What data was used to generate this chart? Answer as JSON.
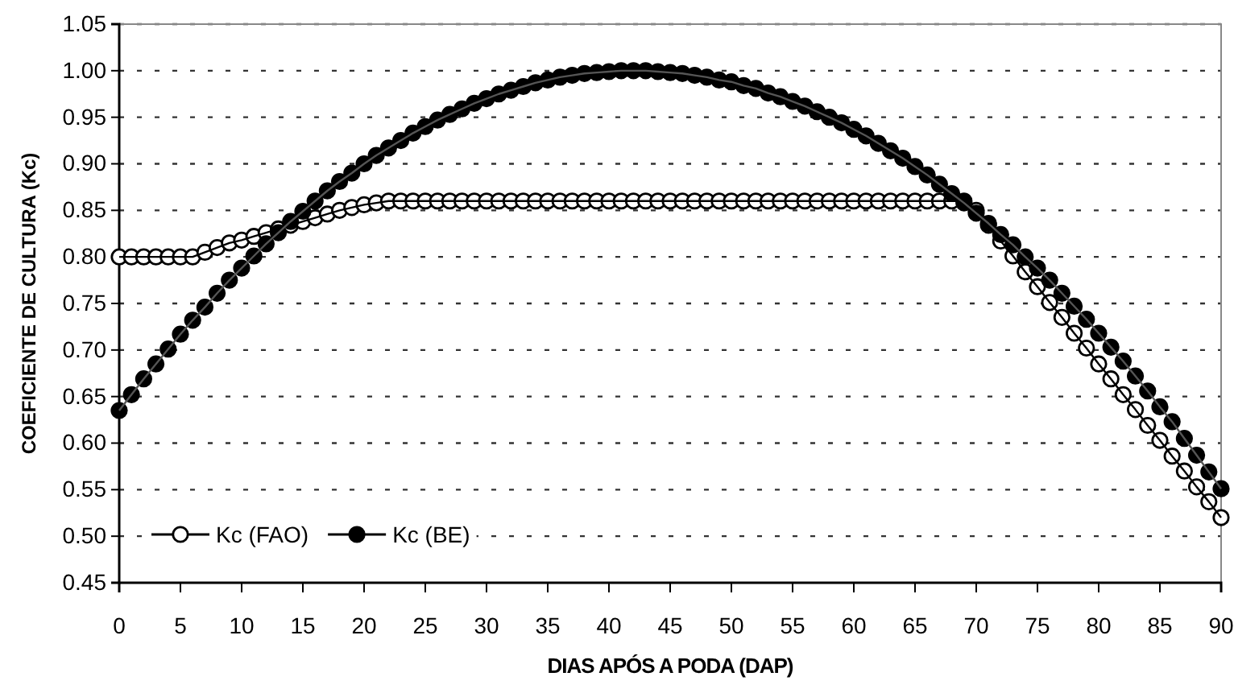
{
  "chart_data": {
    "type": "line",
    "xlabel": "DIAS APÓS A PODA (DAP)",
    "ylabel": "COEFICIENTE DE CULTURA (Kc)",
    "x": [
      0,
      1,
      2,
      3,
      4,
      5,
      6,
      7,
      8,
      9,
      10,
      11,
      12,
      13,
      14,
      15,
      16,
      17,
      18,
      19,
      20,
      21,
      22,
      23,
      24,
      25,
      26,
      27,
      28,
      29,
      30,
      31,
      32,
      33,
      34,
      35,
      36,
      37,
      38,
      39,
      40,
      41,
      42,
      43,
      44,
      45,
      46,
      47,
      48,
      49,
      50,
      51,
      52,
      53,
      54,
      55,
      56,
      57,
      58,
      59,
      60,
      61,
      62,
      63,
      64,
      65,
      66,
      67,
      68,
      69,
      70,
      71,
      72,
      73,
      74,
      75,
      76,
      77,
      78,
      79,
      80,
      81,
      82,
      83,
      84,
      85,
      86,
      87,
      88,
      89,
      90
    ],
    "series": [
      {
        "name": "Kc (FAO)",
        "color": "#000000",
        "values": [
          0.8,
          0.8,
          0.8,
          0.8,
          0.8,
          0.8,
          0.8,
          0.805,
          0.81,
          0.815,
          0.818,
          0.822,
          0.826,
          0.83,
          0.834,
          0.838,
          0.842,
          0.846,
          0.85,
          0.853,
          0.856,
          0.858,
          0.86,
          0.86,
          0.86,
          0.86,
          0.86,
          0.86,
          0.86,
          0.86,
          0.86,
          0.86,
          0.86,
          0.86,
          0.86,
          0.86,
          0.86,
          0.86,
          0.86,
          0.86,
          0.86,
          0.86,
          0.86,
          0.86,
          0.86,
          0.86,
          0.86,
          0.86,
          0.86,
          0.86,
          0.86,
          0.86,
          0.86,
          0.86,
          0.86,
          0.86,
          0.86,
          0.86,
          0.86,
          0.86,
          0.86,
          0.86,
          0.86,
          0.86,
          0.86,
          0.86,
          0.86,
          0.86,
          0.86,
          0.86,
          0.85,
          0.834,
          0.817,
          0.801,
          0.784,
          0.768,
          0.751,
          0.735,
          0.718,
          0.702,
          0.685,
          0.669,
          0.652,
          0.636,
          0.619,
          0.603,
          0.586,
          0.57,
          0.553,
          0.537,
          0.52
        ]
      },
      {
        "name": "Kc (BE)",
        "color": "#000000",
        "values": [
          0.635,
          0.652,
          0.669,
          0.685,
          0.701,
          0.717,
          0.732,
          0.746,
          0.761,
          0.775,
          0.788,
          0.801,
          0.814,
          0.826,
          0.838,
          0.849,
          0.86,
          0.871,
          0.881,
          0.89,
          0.9,
          0.909,
          0.917,
          0.925,
          0.933,
          0.94,
          0.947,
          0.953,
          0.959,
          0.965,
          0.97,
          0.975,
          0.979,
          0.983,
          0.987,
          0.99,
          0.993,
          0.995,
          0.997,
          0.998,
          0.999,
          1.0,
          1.0,
          1.0,
          0.999,
          0.998,
          0.997,
          0.995,
          0.993,
          0.99,
          0.988,
          0.984,
          0.981,
          0.976,
          0.972,
          0.967,
          0.962,
          0.956,
          0.95,
          0.944,
          0.937,
          0.93,
          0.922,
          0.914,
          0.906,
          0.897,
          0.888,
          0.878,
          0.868,
          0.858,
          0.847,
          0.836,
          0.824,
          0.813,
          0.8,
          0.788,
          0.775,
          0.761,
          0.747,
          0.733,
          0.718,
          0.703,
          0.688,
          0.672,
          0.656,
          0.639,
          0.623,
          0.605,
          0.587,
          0.569,
          0.551
        ]
      }
    ],
    "xlim": [
      0,
      90
    ],
    "xticks": [
      0,
      5,
      10,
      15,
      20,
      25,
      30,
      35,
      40,
      45,
      50,
      55,
      60,
      65,
      70,
      75,
      80,
      85,
      90
    ],
    "ylim": [
      0.45,
      1.05
    ],
    "yticks": [
      {
        "value": 0.45,
        "label": "0.45"
      },
      {
        "value": 0.5,
        "label": "0.50"
      },
      {
        "value": 0.55,
        "label": "0.55"
      },
      {
        "value": 0.6,
        "label": "0.60"
      },
      {
        "value": 0.65,
        "label": "0.65"
      },
      {
        "value": 0.7,
        "label": "0.70"
      },
      {
        "value": 0.75,
        "label": "0.75"
      },
      {
        "value": 0.8,
        "label": "0.80"
      },
      {
        "value": 0.85,
        "label": "0.85"
      },
      {
        "value": 0.9,
        "label": "0.90"
      },
      {
        "value": 0.95,
        "label": "0.95"
      },
      {
        "value": 1.0,
        "label": "1.00"
      },
      {
        "value": 1.05,
        "label": "1.05"
      }
    ],
    "grid": "y",
    "legend": "bottom left",
    "marker": "circle",
    "line_style": "solid"
  }
}
